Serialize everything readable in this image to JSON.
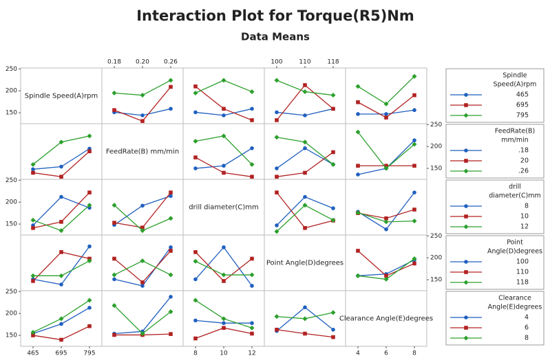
{
  "chart_data": {
    "type": "interaction",
    "title": "Interaction Plot for Torque(R5)Nm",
    "subtitle": "Data Means",
    "ylim": [
      125,
      252
    ],
    "yticks": [
      150,
      200,
      250
    ],
    "colors": [
      "#1f5fbf",
      "#b22222",
      "#2ca02c"
    ],
    "factors": [
      {
        "label": "Spindle Speed(A)rpm",
        "levels": [
          465,
          695,
          795
        ],
        "legend_title": [
          "Spindle",
          "Speed(A)rpm"
        ],
        "legend_entries": [
          465,
          695,
          795
        ]
      },
      {
        "label": "FeedRate(B) mm/min",
        "levels": [
          "0.18",
          "0.20",
          "0.26"
        ],
        "legend_title": [
          "FeedRate(B)",
          "mm/min"
        ],
        "legend_entries": [
          ".18",
          "20",
          ".26"
        ]
      },
      {
        "label": "drill diameter(C)mm",
        "levels": [
          8,
          10,
          12
        ],
        "legend_title": [
          "drill",
          "diameter(C)mm"
        ],
        "legend_entries": [
          8,
          10,
          12
        ]
      },
      {
        "label": "Point Angle(D)degrees",
        "levels": [
          100,
          110,
          118
        ],
        "legend_title": [
          "Point",
          "Angle(D)degrees"
        ],
        "legend_entries": [
          100,
          110,
          118
        ]
      },
      {
        "label": "Clearance Angle(E)degrees",
        "levels": [
          4,
          6,
          8
        ],
        "legend_title": [
          "Clearance",
          "Angle(E)degrees"
        ],
        "legend_entries": [
          4,
          6,
          8
        ]
      }
    ],
    "panels": [
      [
        null,
        [
          [
            151,
            144,
            159
          ],
          [
            156,
            131,
            209
          ],
          [
            195,
            190,
            224
          ]
        ],
        [
          [
            151,
            144,
            159
          ],
          [
            210,
            159,
            133
          ],
          [
            195,
            224,
            198
          ]
        ],
        [
          [
            151,
            144,
            159
          ],
          [
            133,
            213,
            159
          ],
          [
            224,
            198,
            190
          ]
        ],
        [
          [
            147,
            147,
            156
          ],
          [
            174,
            139,
            190
          ],
          [
            210,
            170,
            233
          ]
        ]
      ],
      [
        [
          [
            148,
            154,
            195
          ],
          [
            140,
            131,
            189
          ],
          [
            159,
            210,
            224
          ]
        ],
        null,
        [
          [
            150,
            156,
            196
          ],
          [
            175,
            140,
            131
          ],
          [
            212,
            224,
            159
          ]
        ],
        [
          [
            150,
            196,
            159
          ],
          [
            131,
            140,
            187
          ],
          [
            221,
            210,
            159
          ]
        ],
        [
          [
            136,
            150,
            214
          ],
          [
            156,
            156,
            156
          ],
          [
            233,
            150,
            205
          ]
        ]
      ],
      [
        [
          [
            147,
            212,
            187
          ],
          [
            141,
            155,
            222
          ],
          [
            159,
            135,
            193
          ]
        ],
        [
          [
            148,
            192,
            214
          ],
          [
            153,
            142,
            222
          ],
          [
            193,
            135,
            163
          ]
        ],
        null,
        [
          [
            147,
            212,
            186
          ],
          [
            222,
            141,
            158
          ],
          [
            133,
            193,
            159
          ]
        ],
        [
          [
            178,
            138,
            222
          ],
          [
            175,
            163,
            183
          ],
          [
            176,
            155,
            157
          ]
        ]
      ],
      [
        [
          [
            151,
            139,
            226
          ],
          [
            147,
            213,
            198
          ],
          [
            159,
            159,
            193
          ]
        ],
        [
          [
            151,
            136,
            224
          ],
          [
            198,
            144,
            216
          ],
          [
            161,
            193,
            161
          ]
        ],
        [
          [
            151,
            224,
            136
          ],
          [
            213,
            147,
            198
          ],
          [
            192,
            161,
            161
          ]
        ],
        null,
        [
          [
            159,
            163,
            195
          ],
          [
            216,
            159,
            187
          ],
          [
            159,
            151,
            198
          ]
        ]
      ],
      [
        [
          [
            154,
            176,
            213
          ],
          [
            150,
            140,
            171
          ],
          [
            157,
            188,
            230
          ]
        ],
        [
          [
            154,
            159,
            238
          ],
          [
            151,
            151,
            153
          ],
          [
            218,
            154,
            204
          ]
        ],
        [
          [
            184,
            178,
            178
          ],
          [
            143,
            167,
            154
          ],
          [
            230,
            188,
            167
          ]
        ],
        [
          [
            160,
            214,
            163
          ],
          [
            163,
            154,
            146
          ],
          [
            193,
            188,
            202
          ]
        ],
        null
      ]
    ]
  }
}
